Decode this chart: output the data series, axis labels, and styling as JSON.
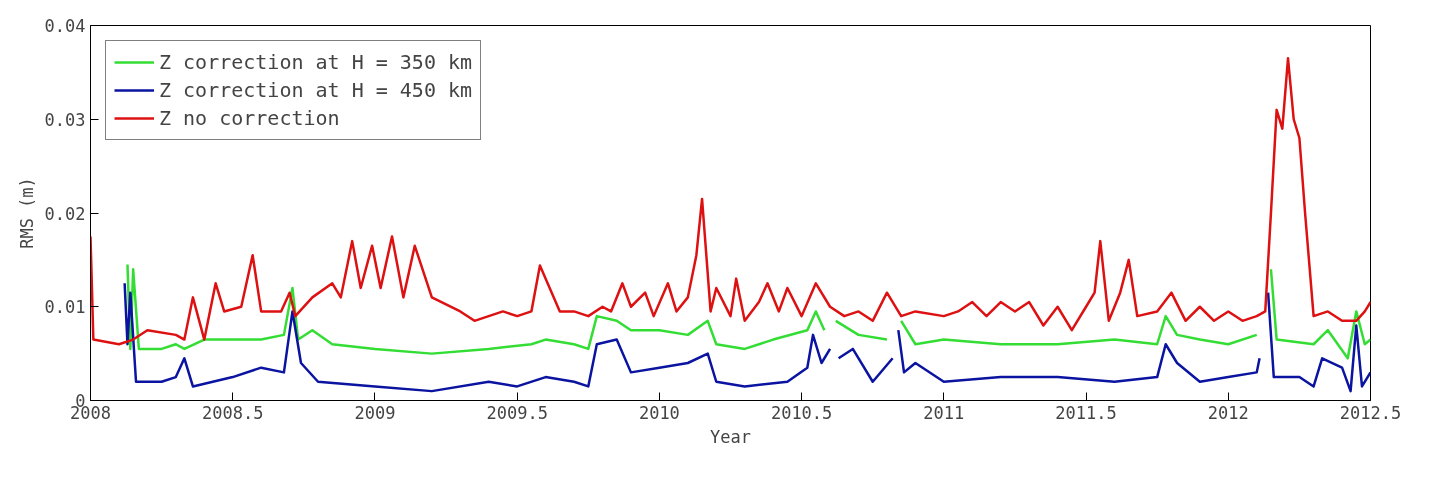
{
  "chart_data": {
    "type": "line",
    "xlabel": "Year",
    "ylabel": "RMS (m)",
    "xlim": [
      2008,
      2012.5
    ],
    "ylim": [
      0,
      0.04
    ],
    "xticks": [
      2008,
      2008.5,
      2009,
      2009.5,
      2010,
      2010.5,
      2011,
      2011.5,
      2012,
      2012.5
    ],
    "yticks": [
      0,
      0.01,
      0.02,
      0.03,
      0.04
    ],
    "grid": false,
    "legend": "top left",
    "line_style": "solid",
    "marker": "none",
    "series": [
      {
        "name": "Z correction at H = 350 km",
        "color": "#33dd33",
        "x": [
          2008.13,
          2008.14,
          2008.15,
          2008.17,
          2008.25,
          2008.3,
          2008.33,
          2008.4,
          2008.5,
          2008.6,
          2008.68,
          2008.71,
          2008.73,
          2008.78,
          2008.85,
          2009.0,
          2009.2,
          2009.4,
          2009.55,
          2009.6,
          2009.7,
          2009.75,
          2009.78,
          2009.85,
          2009.9,
          2010.0,
          2010.1,
          2010.17,
          2010.2,
          2010.3,
          2010.4,
          2010.52,
          2010.55,
          2010.58,
          2010.6,
          2010.62,
          2010.7,
          2010.8,
          2010.83,
          2010.85,
          2010.9,
          2011.0,
          2011.2,
          2011.4,
          2011.6,
          2011.75,
          2011.78,
          2011.82,
          2011.9,
          2012.0,
          2012.1,
          2012.12,
          2012.15,
          2012.17,
          2012.3,
          2012.35,
          2012.42,
          2012.45,
          2012.48,
          2012.5
        ],
        "values": [
          0.0145,
          0.0055,
          0.014,
          0.0055,
          0.0055,
          0.006,
          0.0055,
          0.0065,
          0.0065,
          0.0065,
          0.007,
          0.012,
          0.0065,
          0.0075,
          0.006,
          0.0055,
          0.005,
          0.0055,
          0.006,
          0.0065,
          0.006,
          0.0055,
          0.009,
          0.0085,
          0.0075,
          0.0075,
          0.007,
          0.0085,
          0.006,
          0.0055,
          0.0065,
          0.0075,
          0.0095,
          0.0075,
          null,
          0.0085,
          0.007,
          0.0065,
          null,
          0.0085,
          0.006,
          0.0065,
          0.006,
          0.006,
          0.0065,
          0.006,
          0.009,
          0.007,
          0.0065,
          0.006,
          0.007,
          null,
          0.014,
          0.0065,
          0.006,
          0.0075,
          0.0045,
          0.0095,
          0.006,
          0.0065
        ]
      },
      {
        "name": "Z correction at H = 450 km",
        "color": "#0a14a0",
        "x": [
          2008.12,
          2008.13,
          2008.14,
          2008.16,
          2008.25,
          2008.3,
          2008.33,
          2008.36,
          2008.5,
          2008.6,
          2008.68,
          2008.71,
          2008.74,
          2008.8,
          2009.0,
          2009.2,
          2009.4,
          2009.5,
          2009.6,
          2009.7,
          2009.75,
          2009.78,
          2009.85,
          2009.9,
          2010.0,
          2010.1,
          2010.17,
          2010.2,
          2010.3,
          2010.45,
          2010.52,
          2010.54,
          2010.57,
          2010.6,
          2010.61,
          2010.63,
          2010.68,
          2010.75,
          2010.82,
          2010.83,
          2010.84,
          2010.86,
          2010.9,
          2011.0,
          2011.2,
          2011.4,
          2011.6,
          2011.75,
          2011.78,
          2011.82,
          2011.9,
          2012.0,
          2012.1,
          2012.11,
          2012.12,
          2012.14,
          2012.16,
          2012.25,
          2012.3,
          2012.33,
          2012.4,
          2012.43,
          2012.45,
          2012.47,
          2012.5
        ],
        "values": [
          0.0125,
          0.006,
          0.0115,
          0.002,
          0.002,
          0.0025,
          0.0045,
          0.0015,
          0.0025,
          0.0035,
          0.003,
          0.0095,
          0.004,
          0.002,
          0.0015,
          0.001,
          0.002,
          0.0015,
          0.0025,
          0.002,
          0.0015,
          0.006,
          0.0065,
          0.003,
          0.0035,
          0.004,
          0.005,
          0.002,
          0.0015,
          0.002,
          0.0035,
          0.007,
          0.004,
          0.0055,
          null,
          0.0045,
          0.0055,
          0.002,
          0.0045,
          null,
          0.0075,
          0.003,
          0.004,
          0.002,
          0.0025,
          0.0025,
          0.002,
          0.0025,
          0.006,
          0.004,
          0.002,
          0.0025,
          0.003,
          0.0045,
          null,
          0.0115,
          0.0025,
          0.0025,
          0.0015,
          0.0045,
          0.0035,
          0.001,
          0.008,
          0.0015,
          0.003
        ]
      },
      {
        "name": "Z no correction",
        "color": "#dd1111",
        "x": [
          2008.0,
          2008.01,
          2008.1,
          2008.15,
          2008.2,
          2008.3,
          2008.33,
          2008.36,
          2008.4,
          2008.44,
          2008.47,
          2008.53,
          2008.57,
          2008.6,
          2008.67,
          2008.7,
          2008.72,
          2008.78,
          2008.85,
          2008.88,
          2008.92,
          2008.95,
          2008.99,
          2009.02,
          2009.06,
          2009.1,
          2009.14,
          2009.2,
          2009.3,
          2009.35,
          2009.45,
          2009.5,
          2009.55,
          2009.58,
          2009.65,
          2009.7,
          2009.75,
          2009.8,
          2009.83,
          2009.87,
          2009.9,
          2009.95,
          2009.98,
          2010.03,
          2010.06,
          2010.1,
          2010.13,
          2010.15,
          2010.18,
          2010.2,
          2010.25,
          2010.27,
          2010.3,
          2010.35,
          2010.38,
          2010.42,
          2010.45,
          2010.5,
          2010.55,
          2010.6,
          2010.65,
          2010.7,
          2010.75,
          2010.8,
          2010.85,
          2010.9,
          2011.0,
          2011.05,
          2011.1,
          2011.15,
          2011.2,
          2011.25,
          2011.3,
          2011.35,
          2011.4,
          2011.45,
          2011.5,
          2011.53,
          2011.55,
          2011.58,
          2011.62,
          2011.65,
          2011.68,
          2011.75,
          2011.8,
          2011.85,
          2011.9,
          2011.95,
          2012.0,
          2012.05,
          2012.1,
          2012.13,
          2012.15,
          2012.17,
          2012.19,
          2012.21,
          2012.23,
          2012.25,
          2012.27,
          2012.3,
          2012.35,
          2012.4,
          2012.45,
          2012.48,
          2012.5
        ],
        "values": [
          0.0175,
          0.0065,
          0.006,
          0.0065,
          0.0075,
          0.007,
          0.0065,
          0.011,
          0.0065,
          0.0125,
          0.0095,
          0.01,
          0.0155,
          0.0095,
          0.0095,
          0.0115,
          0.009,
          0.011,
          0.0125,
          0.011,
          0.017,
          0.012,
          0.0165,
          0.012,
          0.0175,
          0.011,
          0.0165,
          0.011,
          0.0095,
          0.0085,
          0.0095,
          0.009,
          0.0095,
          0.0144,
          0.0095,
          0.0095,
          0.009,
          0.01,
          0.0095,
          0.0125,
          0.01,
          0.0115,
          0.009,
          0.0125,
          0.0095,
          0.011,
          0.0155,
          0.0215,
          0.0095,
          0.012,
          0.009,
          0.013,
          0.0085,
          0.0105,
          0.0125,
          0.0095,
          0.012,
          0.009,
          0.0125,
          0.01,
          0.009,
          0.0095,
          0.0085,
          0.0115,
          0.009,
          0.0095,
          0.009,
          0.0095,
          0.0105,
          0.009,
          0.0105,
          0.0095,
          0.0105,
          0.008,
          0.01,
          0.0075,
          0.01,
          0.0115,
          0.017,
          0.0085,
          0.0115,
          0.015,
          0.009,
          0.0095,
          0.0115,
          0.0085,
          0.01,
          0.0085,
          0.0095,
          0.0085,
          0.009,
          0.0095,
          0.02,
          0.031,
          0.029,
          0.0365,
          0.03,
          0.028,
          0.02,
          0.009,
          0.0095,
          0.0085,
          0.0085,
          0.0095,
          0.0105
        ]
      }
    ]
  }
}
